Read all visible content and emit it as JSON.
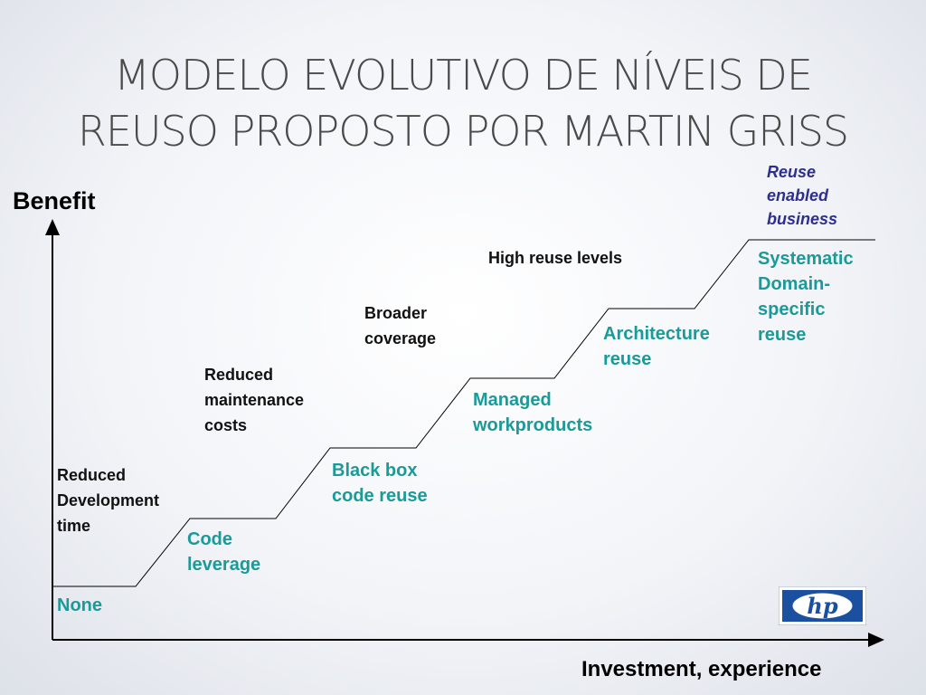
{
  "title": {
    "line1": "MODELO EVOLUTIVO DE NÍVEIS DE",
    "line2": "REUSO PROPOSTO POR MARTIN GRISS"
  },
  "axes": {
    "y_label": "Benefit",
    "x_label": "Investment, experience"
  },
  "levels": [
    {
      "name": "None",
      "benefit": "Reduced\nDevelopment\ntime"
    },
    {
      "name": "Code\nleverage",
      "benefit": "Reduced\nmaintenance\ncosts"
    },
    {
      "name": "Black box\ncode reuse",
      "benefit": "Broader\ncoverage"
    },
    {
      "name": "Managed\nworkproducts",
      "benefit": "High reuse levels"
    },
    {
      "name": "Architecture\nreuse",
      "benefit": ""
    },
    {
      "name": "Systematic\nDomain-\nspecific\nreuse",
      "benefit": "Reuse\nenabled\nbusiness"
    }
  ],
  "logo": {
    "text": "hp"
  },
  "colors": {
    "level_text": "#1a9a98",
    "benefit_text": "#111111",
    "top_benefit_text": "#2d2f8f",
    "logo_blue": "#1b4fa0"
  }
}
